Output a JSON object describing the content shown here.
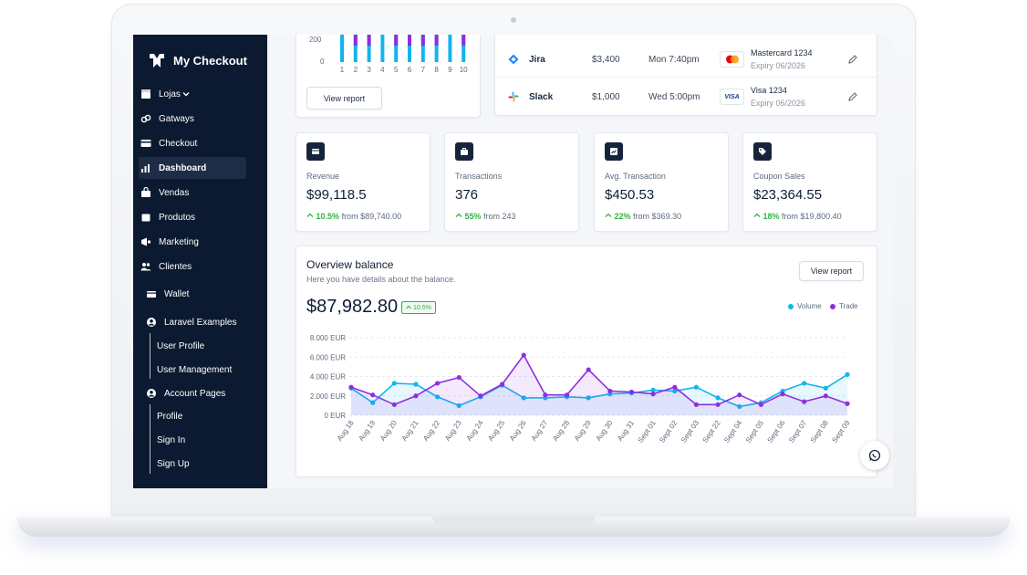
{
  "brand": {
    "name": "My Checkout"
  },
  "sidebar": {
    "items": [
      {
        "label": "Lojas",
        "icon": "store-icon"
      },
      {
        "label": "Gatways",
        "icon": "link-icon"
      },
      {
        "label": "Checkout",
        "icon": "card-icon"
      },
      {
        "label": "Dashboard",
        "icon": "chart-icon"
      },
      {
        "label": "Vendas",
        "icon": "bag-icon"
      },
      {
        "label": "Produtos",
        "icon": "box-icon"
      },
      {
        "label": "Marketing",
        "icon": "megaphone-icon"
      },
      {
        "label": "Clientes",
        "icon": "users-icon"
      },
      {
        "label": "Wallet",
        "icon": "wallet-icon"
      },
      {
        "label": "Laravel Examples",
        "icon": "user-circle-icon"
      },
      {
        "label": "Account Pages",
        "icon": "user-circle-icon"
      }
    ],
    "laravel_sub": [
      "User Profile",
      "User Management"
    ],
    "account_sub": [
      "Profile",
      "Sign In",
      "Sign Up"
    ]
  },
  "top_chart": {
    "y_ticks": [
      "200",
      "0"
    ],
    "x_ticks": [
      "1",
      "2",
      "3",
      "4",
      "5",
      "6",
      "7",
      "8",
      "9",
      "10"
    ],
    "view_report": "View report"
  },
  "transactions": [
    {
      "name": "Jira",
      "amount": "$3,400",
      "time": "Mon 7:40pm",
      "card": "Mastercard 1234",
      "expiry": "Expiry 06/2026",
      "brand": "mastercard"
    },
    {
      "name": "Slack",
      "amount": "$1,000",
      "time": "Wed 5:00pm",
      "card": "Visa 1234",
      "expiry": "Expiry 06/2026",
      "brand": "visa",
      "brand_label": "VISA"
    }
  ],
  "stats": [
    {
      "label": "Revenue",
      "value": "$99,118.5",
      "pct": "10.5%",
      "from": "from $89,740.00",
      "icon": "wallet-icon"
    },
    {
      "label": "Transactions",
      "value": "376",
      "pct": "55%",
      "from": "from 243",
      "icon": "briefcase-icon"
    },
    {
      "label": "Avg. Transaction",
      "value": "$450.53",
      "pct": "22%",
      "from": "from $369.30",
      "icon": "chart-icon"
    },
    {
      "label": "Coupon Sales",
      "value": "$23,364.55",
      "pct": "18%",
      "from": "from $19,800.40",
      "icon": "tag-icon"
    }
  ],
  "overview": {
    "title": "Overview balance",
    "subtitle": "Here you have details about the balance.",
    "value": "$87,982.80",
    "badge": "10.5%",
    "view_report": "View report",
    "legend_volume": "Volume",
    "legend_trade": "Trade"
  },
  "colors": {
    "volume": "#11b5ef",
    "trade": "#8f2ee0",
    "sidebar": "#0b1a30",
    "positive": "#2fb344"
  },
  "chart_data": {
    "type": "line",
    "title": "Overview balance",
    "x": [
      "Aug 18",
      "Aug 19",
      "Aug 20",
      "Aug 21",
      "Aug 22",
      "Aug 23",
      "Aug 24",
      "Aug 25",
      "Aug 26",
      "Aug 27",
      "Aug 28",
      "Aug 29",
      "Aug 30",
      "Aug 31",
      "Sept 01",
      "Sept 02",
      "Sept 03",
      "Sept 22",
      "Sept 04",
      "Sept 05",
      "Sept 06",
      "Sept 07",
      "Sept 08",
      "Sept 09"
    ],
    "y_ticks": [
      "8.000 EUR",
      "6.000 EUR",
      "4.000 EUR",
      "2.000 EUR",
      "0 EUR"
    ],
    "ylim": [
      0,
      8000
    ],
    "series": [
      {
        "name": "Volume",
        "values": [
          2800,
          1300,
          3300,
          3200,
          1900,
          1000,
          1900,
          3100,
          1800,
          1800,
          1900,
          1800,
          2200,
          2300,
          2600,
          2500,
          2900,
          1800,
          900,
          1300,
          2500,
          3300,
          2800,
          4200
        ]
      },
      {
        "name": "Trade",
        "values": [
          2900,
          2100,
          1100,
          2000,
          3300,
          3900,
          2000,
          3200,
          6200,
          2100,
          2100,
          4700,
          2500,
          2400,
          2200,
          2900,
          1100,
          1100,
          2100,
          1100,
          2200,
          1400,
          2000,
          1200
        ]
      }
    ],
    "grid": true,
    "legend": "top-right"
  },
  "top_bar_chart": {
    "type": "bar",
    "categories": [
      "1",
      "2",
      "3",
      "4",
      "5",
      "6",
      "7",
      "8",
      "9",
      "10"
    ],
    "series": [
      {
        "values": [
          300,
          300,
          300,
          300,
          300,
          300,
          300,
          300,
          300,
          300
        ]
      },
      {
        "values": [
          0,
          300,
          300,
          0,
          300,
          300,
          300,
          300,
          0,
          300
        ]
      }
    ]
  }
}
